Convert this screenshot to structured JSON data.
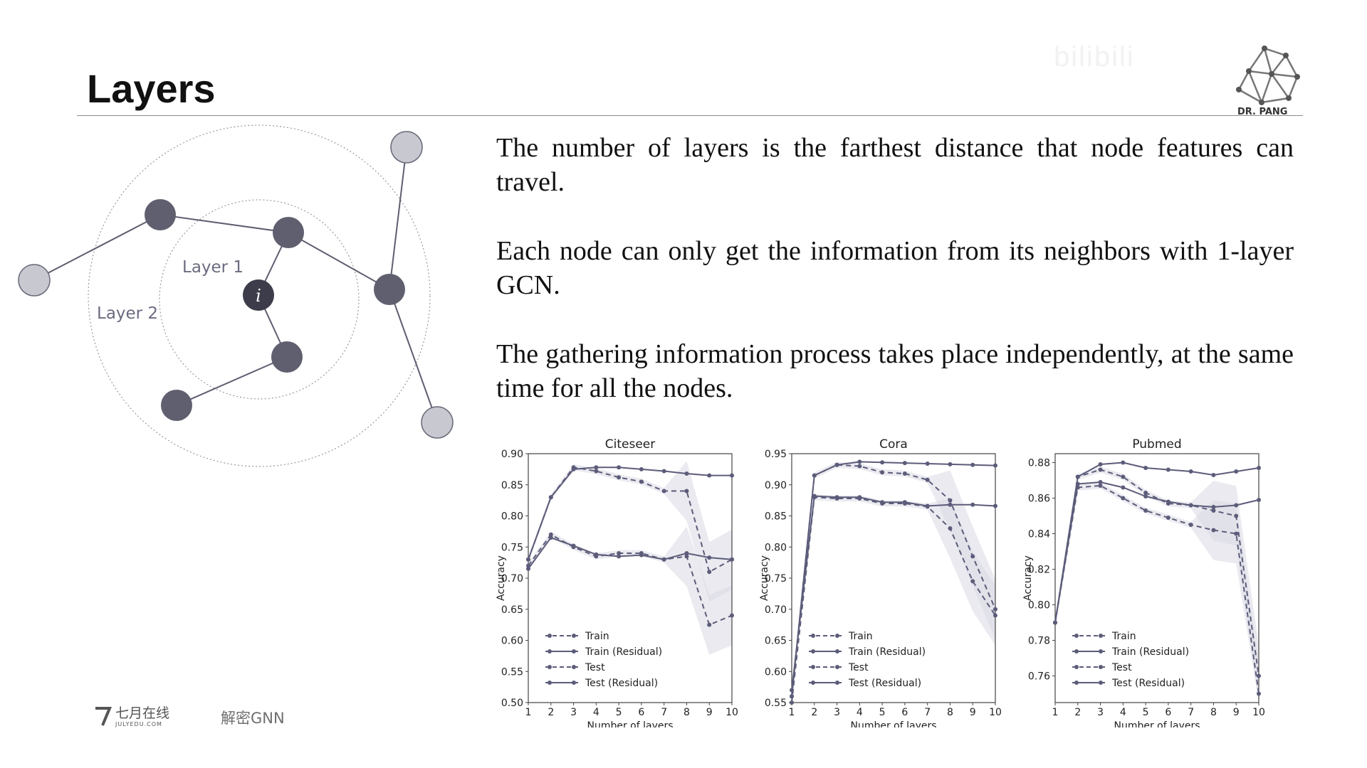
{
  "slide": {
    "title": "Layers",
    "logo_caption": "DR. PANG",
    "watermark": "bilibili",
    "paragraphs": [
      "The number of layers is the farthest distance that node features can travel.",
      "Each node can only get the information from its neighbors with 1-layer GCN.",
      "The gathering information process takes place independently, at the same time for all the nodes."
    ],
    "footer": {
      "brand": "七月在线",
      "brand_sub": "JULYEDU.COM",
      "course": "解密GNN"
    }
  },
  "diagram": {
    "layer1_label": "Layer 1",
    "layer2_label": "Layer 2",
    "center_node_label": "i"
  },
  "chart_data": [
    {
      "type": "line",
      "title": "Citeseer",
      "xlabel": "Number of layers",
      "ylabel": "Accuracy",
      "x": [
        1,
        2,
        3,
        4,
        5,
        6,
        7,
        8,
        9,
        10
      ],
      "ylim": [
        0.5,
        0.9
      ],
      "yticks": [
        "0.50",
        "0.55",
        "0.60",
        "0.65",
        "0.70",
        "0.75",
        "0.80",
        "0.85",
        "0.90"
      ],
      "legend_position": "lower-left",
      "series": [
        {
          "name": "Train",
          "style": "dashed",
          "values": [
            0.72,
            0.77,
            0.75,
            0.735,
            0.74,
            0.74,
            0.73,
            0.735,
            0.625,
            0.64
          ]
        },
        {
          "name": "Train (Residual)",
          "style": "solid",
          "values": [
            0.73,
            0.83,
            0.875,
            0.878,
            0.878,
            0.875,
            0.872,
            0.868,
            0.865,
            0.865
          ]
        },
        {
          "name": "Test",
          "style": "dashed",
          "values": [
            0.73,
            0.83,
            0.878,
            0.872,
            0.862,
            0.855,
            0.84,
            0.84,
            0.71,
            0.73
          ]
        },
        {
          "name": "Test (Residual)",
          "style": "solid",
          "values": [
            0.715,
            0.765,
            0.752,
            0.738,
            0.735,
            0.737,
            0.73,
            0.74,
            0.733,
            0.73
          ]
        }
      ]
    },
    {
      "type": "line",
      "title": "Cora",
      "xlabel": "Number of layers",
      "ylabel": "Accuracy",
      "x": [
        1,
        2,
        3,
        4,
        5,
        6,
        7,
        8,
        9,
        10
      ],
      "ylim": [
        0.55,
        0.95
      ],
      "yticks": [
        "0.55",
        "0.60",
        "0.65",
        "0.70",
        "0.75",
        "0.80",
        "0.85",
        "0.90",
        "0.95"
      ],
      "legend_position": "lower-left",
      "series": [
        {
          "name": "Train",
          "style": "dashed",
          "values": [
            0.55,
            0.88,
            0.878,
            0.878,
            0.87,
            0.87,
            0.865,
            0.83,
            0.745,
            0.69
          ]
        },
        {
          "name": "Train (Residual)",
          "style": "solid",
          "values": [
            0.56,
            0.915,
            0.932,
            0.937,
            0.936,
            0.935,
            0.934,
            0.933,
            0.932,
            0.931
          ]
        },
        {
          "name": "Test",
          "style": "dashed",
          "values": [
            0.56,
            0.915,
            0.932,
            0.93,
            0.92,
            0.918,
            0.908,
            0.875,
            0.785,
            0.7
          ]
        },
        {
          "name": "Test (Residual)",
          "style": "solid",
          "values": [
            0.57,
            0.882,
            0.88,
            0.88,
            0.872,
            0.872,
            0.866,
            0.868,
            0.868,
            0.866
          ]
        }
      ]
    },
    {
      "type": "line",
      "title": "Pubmed",
      "xlabel": "Number of layers",
      "ylabel": "Accuracy",
      "x": [
        1,
        2,
        3,
        4,
        5,
        6,
        7,
        8,
        9,
        10
      ],
      "ylim": [
        0.745,
        0.885
      ],
      "yticks": [
        "0.76",
        "0.78",
        "0.80",
        "0.82",
        "0.84",
        "0.86",
        "0.88"
      ],
      "legend_position": "lower-left",
      "series": [
        {
          "name": "Train",
          "style": "dashed",
          "values": [
            0.79,
            0.866,
            0.867,
            0.86,
            0.853,
            0.849,
            0.845,
            0.842,
            0.84,
            0.75
          ]
        },
        {
          "name": "Train (Residual)",
          "style": "solid",
          "values": [
            0.79,
            0.872,
            0.879,
            0.88,
            0.877,
            0.876,
            0.875,
            0.873,
            0.875,
            0.877
          ]
        },
        {
          "name": "Test",
          "style": "dashed",
          "values": [
            0.79,
            0.872,
            0.876,
            0.872,
            0.863,
            0.857,
            0.856,
            0.853,
            0.85,
            0.76
          ]
        },
        {
          "name": "Test (Residual)",
          "style": "solid",
          "values": [
            0.79,
            0.868,
            0.869,
            0.866,
            0.861,
            0.858,
            0.856,
            0.855,
            0.856,
            0.859
          ]
        }
      ]
    }
  ],
  "colors": {
    "node_dark": "#5f5f70",
    "node_light": "#c8c8d0",
    "center_node": "#3c3c4a",
    "edge": "#5e5e70",
    "series": "#5c5c7a",
    "band": "#d9d9e3"
  }
}
